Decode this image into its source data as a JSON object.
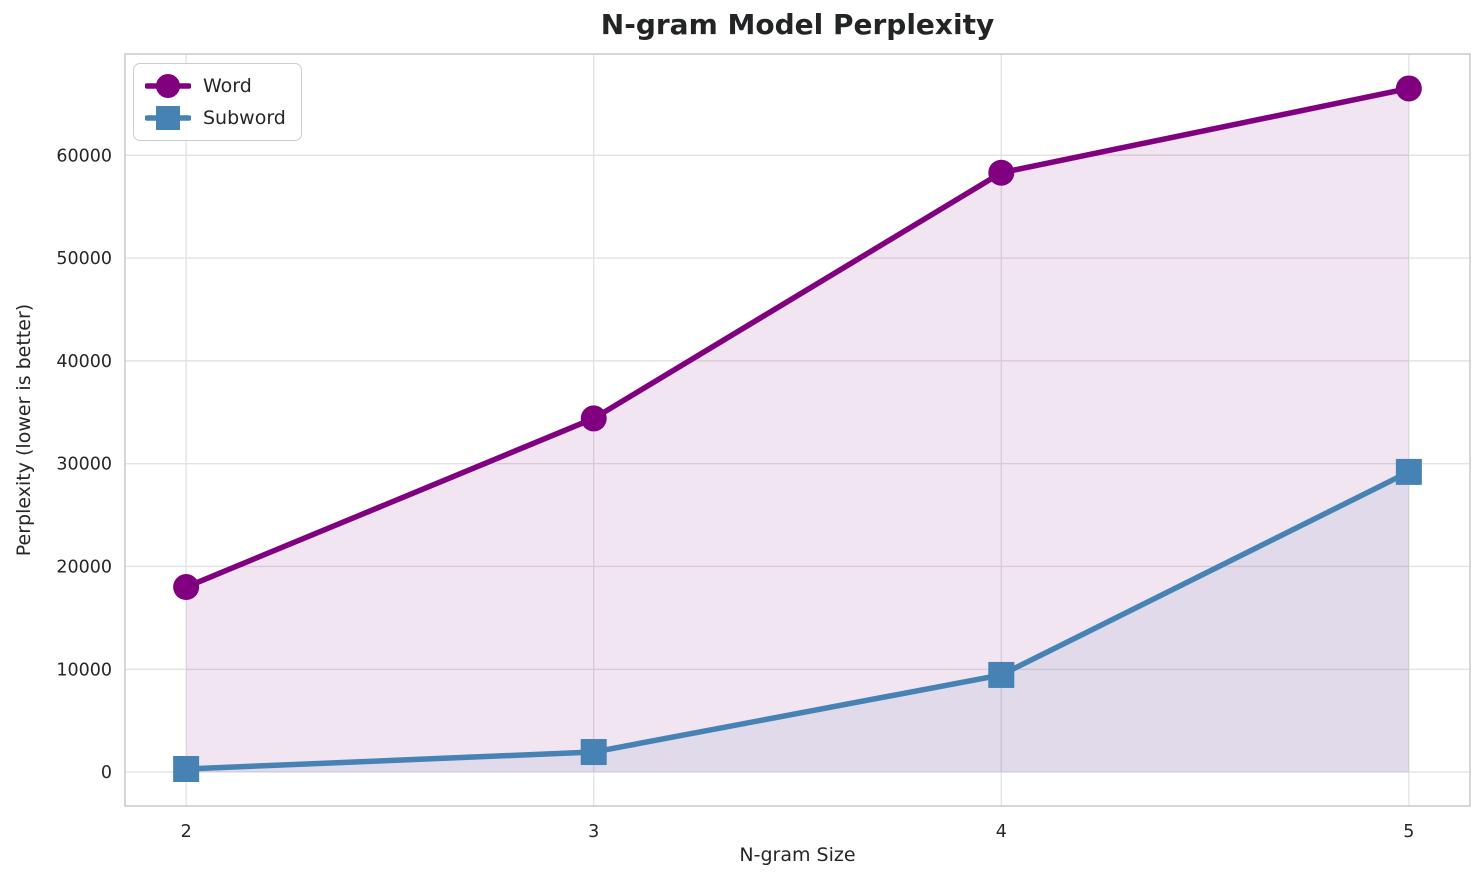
{
  "chart_data": {
    "type": "line",
    "title": "N-gram Model Perplexity",
    "xlabel": "N-gram Size",
    "ylabel": "Perplexity (lower is better)",
    "x": [
      2,
      3,
      4,
      5
    ],
    "series": [
      {
        "name": "Word",
        "values": [
          18000,
          34400,
          58300,
          66500
        ],
        "color": "#800080",
        "marker": "circle"
      },
      {
        "name": "Subword",
        "values": [
          300,
          1950,
          9450,
          29200
        ],
        "color": "#4682B4",
        "marker": "square"
      }
    ],
    "x_ticks": [
      "2",
      "3",
      "4",
      "5"
    ],
    "x_tick_values": [
      2,
      3,
      4,
      5
    ],
    "y_ticks": [
      "0",
      "10000",
      "20000",
      "30000",
      "40000",
      "50000",
      "60000"
    ],
    "y_tick_values": [
      0,
      10000,
      20000,
      30000,
      40000,
      50000,
      60000
    ],
    "xlim": [
      1.85,
      5.15
    ],
    "ylim": [
      -3300,
      69850
    ],
    "grid": true,
    "fill_to_zero": true,
    "fill_alpha": 0.1,
    "legend_position": "upper left",
    "colors": {
      "grid": "#e3e3e3",
      "spine": "#cccccc",
      "text": "#262626",
      "background": "#ffffff"
    }
  }
}
